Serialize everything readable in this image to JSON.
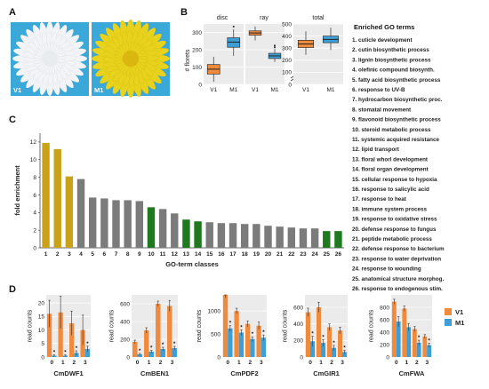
{
  "panels": {
    "A": {
      "letter": "A",
      "photo_labels": [
        "V1",
        "M1"
      ],
      "colors": {
        "v1_flower": "#f2f4f7",
        "m1_flower": "#e8d21c",
        "background": "#3aa8d8"
      }
    },
    "B": {
      "letter": "B",
      "ylabel": "# florets",
      "facets": [
        "disc",
        "ray",
        "total"
      ],
      "right_title": "Enriched GO terms"
    },
    "C": {
      "letter": "C"
    },
    "D": {
      "letter": "D"
    }
  },
  "go_terms": [
    "1.  cuticle development",
    "2.  cutin biosynthetic process",
    "3.  lignin biosynthetic process",
    "4.  olefinic compound biosynth.",
    "5.  fatty acid biosynthetic process",
    "6.  response to UV-B",
    "7.  hydrocarbon biosynthetic proc.",
    "8.  stomatal movement",
    "9.  flavonoid biosynthetic process",
    "10. steroid metabolic process",
    "11. systemic acquired resistance",
    "12. lipid transport",
    "13. floral whorl development",
    "14. floral organ development",
    "15. cellular response to hypoxia",
    "16. response to salicylic acid",
    "17. response to heat",
    "18. immune system process",
    "19. response to oxidative stress",
    "20. defense response to fungus",
    "21. peptide metabolic process",
    "22. defense response to bacterium",
    "23. response to water deprivation",
    "24. response to wounding",
    "25. anatomical structure morphog.",
    "26. response to endogenous stim."
  ],
  "chart_data": [
    {
      "type": "box",
      "panel": "B",
      "facet": "disc",
      "ylim": [
        0,
        350
      ],
      "yticks": [
        0,
        100,
        200,
        300
      ],
      "categories": [
        "V1",
        "M1"
      ],
      "series": [
        {
          "name": "V1",
          "color": "#f08a3c",
          "min": 15,
          "q1": 60,
          "median": 88,
          "q3": 115,
          "max": 160
        },
        {
          "name": "M1",
          "color": "#3d9fd6",
          "min": 165,
          "q1": 215,
          "median": 245,
          "q3": 270,
          "max": 320,
          "outliers": [
            335
          ]
        }
      ]
    },
    {
      "type": "box",
      "panel": "B",
      "facet": "ray",
      "ylim": [
        0,
        350
      ],
      "categories": [
        "V1",
        "M1"
      ],
      "series": [
        {
          "name": "V1",
          "color": "#f08a3c",
          "min": 255,
          "q1": 285,
          "median": 298,
          "q3": 310,
          "max": 335
        },
        {
          "name": "M1",
          "color": "#3d9fd6",
          "min": 130,
          "q1": 150,
          "median": 165,
          "q3": 180,
          "max": 205,
          "outliers": [
            215,
            225
          ]
        }
      ]
    },
    {
      "type": "box",
      "panel": "B",
      "facet": "total",
      "ylim": [
        0,
        500
      ],
      "yticks": [
        0,
        100,
        200,
        300,
        400,
        500
      ],
      "axis_break": true,
      "categories": [
        "V1",
        "M1"
      ],
      "series": [
        {
          "name": "V1",
          "color": "#f08a3c",
          "min": 245,
          "q1": 305,
          "median": 335,
          "q3": 365,
          "max": 440
        },
        {
          "name": "M1",
          "color": "#3d9fd6",
          "min": 285,
          "q1": 345,
          "median": 372,
          "q3": 400,
          "max": 470
        }
      ]
    },
    {
      "type": "bar",
      "panel": "C",
      "xlabel": "GO-term classes",
      "ylabel": "fold enrichment",
      "ylim": [
        0,
        13
      ],
      "yticks": [
        0,
        2,
        4,
        6,
        8,
        10,
        12
      ],
      "categories": [
        "1",
        "2",
        "3",
        "4",
        "5",
        "6",
        "7",
        "8",
        "9",
        "10",
        "11",
        "12",
        "13",
        "14",
        "15",
        "16",
        "17",
        "18",
        "19",
        "20",
        "21",
        "22",
        "23",
        "24",
        "25",
        "26"
      ],
      "values": [
        11.9,
        11.2,
        8.1,
        7.8,
        5.7,
        5.6,
        5.4,
        5.4,
        5.3,
        4.6,
        4.4,
        3.9,
        3.2,
        3.0,
        2.9,
        2.8,
        2.8,
        2.7,
        2.7,
        2.5,
        2.4,
        2.3,
        2.2,
        2.2,
        1.9,
        1.9
      ],
      "bar_colors": [
        "#c9a21a",
        "#c9a21a",
        "#c9a21a",
        "#7b7b7b",
        "#7b7b7b",
        "#7b7b7b",
        "#7b7b7b",
        "#7b7b7b",
        "#7b7b7b",
        "#1f7a1f",
        "#7b7b7b",
        "#7b7b7b",
        "#1f7a1f",
        "#1f7a1f",
        "#7b7b7b",
        "#7b7b7b",
        "#7b7b7b",
        "#7b7b7b",
        "#7b7b7b",
        "#7b7b7b",
        "#7b7b7b",
        "#7b7b7b",
        "#7b7b7b",
        "#7b7b7b",
        "#1f7a1f",
        "#1f7a1f"
      ]
    },
    {
      "type": "bar",
      "panel": "D",
      "title": "CmDWF1",
      "ylabel": "read counts",
      "ylim": [
        0,
        23
      ],
      "yticks": [
        0,
        5,
        10,
        15,
        20
      ],
      "categories": [
        "0",
        "1",
        "2",
        "3"
      ],
      "series": [
        {
          "name": "V1",
          "color": "#f08a3c",
          "values": [
            16,
            16.5,
            12.5,
            10
          ],
          "errors": [
            5,
            6,
            4.5,
            5.5
          ],
          "stars": [
            false,
            false,
            false,
            false
          ]
        },
        {
          "name": "M1",
          "color": "#3d9fd6",
          "values": [
            0.5,
            0.5,
            1.5,
            3
          ],
          "errors": [
            0.3,
            0.3,
            0.8,
            1
          ],
          "stars": [
            true,
            true,
            true,
            true
          ]
        }
      ]
    },
    {
      "type": "bar",
      "panel": "D",
      "title": "CmBEN1",
      "ylabel": "read counts",
      "ylim": [
        0,
        700
      ],
      "yticks": [
        0,
        200,
        400,
        600
      ],
      "categories": [
        "0",
        "1",
        "2",
        "3"
      ],
      "series": [
        {
          "name": "V1",
          "color": "#f08a3c",
          "values": [
            170,
            300,
            600,
            575
          ],
          "errors": [
            20,
            30,
            30,
            60
          ],
          "stars": [
            false,
            false,
            false,
            false
          ]
        },
        {
          "name": "M1",
          "color": "#3d9fd6",
          "values": [
            30,
            60,
            90,
            100
          ],
          "errors": [
            10,
            15,
            20,
            20
          ],
          "stars": [
            true,
            true,
            true,
            true
          ]
        }
      ]
    },
    {
      "type": "bar",
      "panel": "D",
      "title": "CmPDF2",
      "ylabel": "read counts",
      "ylim": [
        0,
        1350
      ],
      "yticks": [
        0,
        500,
        1000
      ],
      "categories": [
        "0",
        "1",
        "2",
        "3"
      ],
      "series": [
        {
          "name": "V1",
          "color": "#f08a3c",
          "values": [
            1350,
            1000,
            720,
            680
          ],
          "errors": [
            60,
            60,
            60,
            80
          ],
          "stars": [
            false,
            false,
            false,
            false
          ]
        },
        {
          "name": "M1",
          "color": "#3d9fd6",
          "values": [
            620,
            530,
            390,
            420
          ],
          "errors": [
            60,
            60,
            50,
            60
          ],
          "stars": [
            true,
            true,
            true,
            true
          ]
        }
      ]
    },
    {
      "type": "bar",
      "panel": "D",
      "title": "CmGIR1",
      "ylabel": "read counts",
      "ylim": [
        0,
        750
      ],
      "yticks": [
        0,
        200,
        400,
        600
      ],
      "categories": [
        "0",
        "1",
        "2",
        "3"
      ],
      "series": [
        {
          "name": "V1",
          "color": "#f08a3c",
          "values": [
            540,
            600,
            360,
            320
          ],
          "errors": [
            50,
            60,
            40,
            40
          ],
          "stars": [
            false,
            false,
            false,
            false
          ]
        },
        {
          "name": "M1",
          "color": "#3d9fd6",
          "values": [
            190,
            170,
            110,
            60
          ],
          "errors": [
            60,
            40,
            30,
            20
          ],
          "stars": [
            true,
            true,
            true,
            true
          ]
        }
      ]
    },
    {
      "type": "bar",
      "panel": "D",
      "title": "CmFWA",
      "ylabel": "read counts",
      "ylim": [
        0,
        1000
      ],
      "yticks": [
        0,
        200,
        400,
        600,
        800
      ],
      "categories": [
        "0",
        "1",
        "2",
        "3"
      ],
      "legend": {
        "placement": "right",
        "entries": [
          "V1",
          "M1"
        ]
      },
      "series": [
        {
          "name": "V1",
          "color": "#f08a3c",
          "values": [
            890,
            780,
            450,
            330
          ],
          "errors": [
            40,
            40,
            40,
            30
          ],
          "stars": [
            false,
            false,
            false,
            false
          ]
        },
        {
          "name": "M1",
          "color": "#3d9fd6",
          "values": [
            570,
            480,
            230,
            190
          ],
          "errors": [
            80,
            60,
            40,
            30
          ],
          "stars": [
            false,
            false,
            true,
            true
          ]
        }
      ]
    }
  ]
}
